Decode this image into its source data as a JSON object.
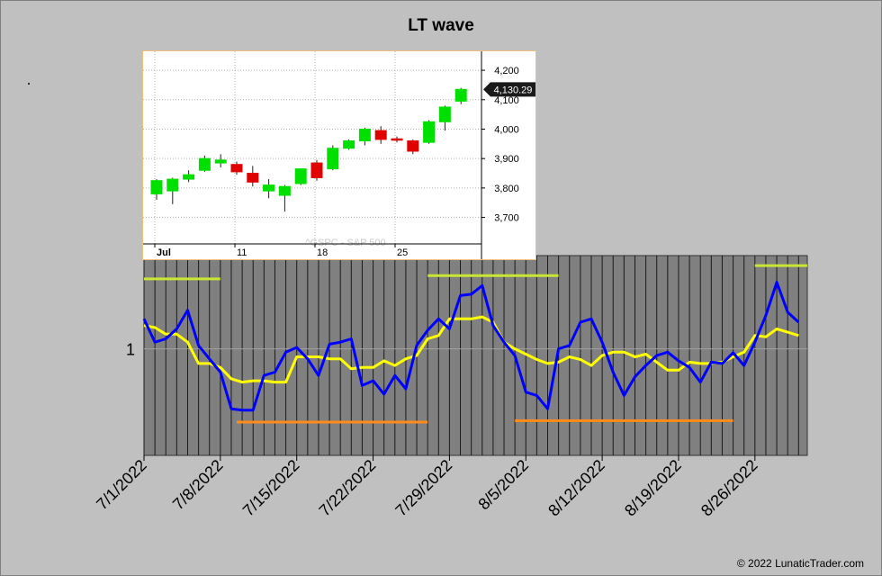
{
  "title": "LT wave",
  "copyright": "© 2022 LunaticTrader.com",
  "colors": {
    "background": "#c0c0c0",
    "plot_bg": "#808080",
    "wave_blue": "#0000ff",
    "wave_yellow": "#ffff00",
    "segment_green": "#c8e632",
    "segment_orange": "#ff8c1a",
    "candle_up": "#00e000",
    "candle_down": "#e00000"
  },
  "chart_data": [
    {
      "type": "line",
      "title": "LT wave",
      "xlabel": "",
      "ylabel": "",
      "y_tick_labels": [
        "1"
      ],
      "x_tick_labels": [
        "7/1/2022",
        "7/8/2022",
        "7/15/2022",
        "7/22/2022",
        "7/29/2022",
        "8/5/2022",
        "8/12/2022",
        "8/19/2022",
        "8/26/2022"
      ],
      "x_tick_day_index": [
        0,
        7,
        14,
        21,
        28,
        35,
        42,
        49,
        56
      ],
      "ylim": [
        -1.6,
        1.4
      ],
      "grid": true,
      "series": [
        {
          "color": "#0000ff",
          "points": [
            [
              0,
              0.45
            ],
            [
              1,
              0.1
            ],
            [
              2,
              0.15
            ],
            [
              3,
              0.3
            ],
            [
              4,
              0.58
            ],
            [
              5,
              0.05
            ],
            [
              6,
              -0.15
            ],
            [
              7,
              -0.35
            ],
            [
              8,
              -0.9
            ],
            [
              9,
              -0.92
            ],
            [
              10,
              -0.92
            ],
            [
              11,
              -0.4
            ],
            [
              12,
              -0.35
            ],
            [
              13,
              -0.05
            ],
            [
              14,
              0.02
            ],
            [
              15,
              -0.15
            ],
            [
              16,
              -0.4
            ],
            [
              17,
              0.07
            ],
            [
              18,
              0.1
            ],
            [
              19,
              0.15
            ],
            [
              20,
              -0.55
            ],
            [
              21,
              -0.48
            ],
            [
              22,
              -0.68
            ],
            [
              23,
              -0.4
            ],
            [
              24,
              -0.6
            ],
            [
              25,
              0.05
            ],
            [
              26,
              0.28
            ],
            [
              27,
              0.45
            ],
            [
              28,
              0.3
            ],
            [
              29,
              0.8
            ],
            [
              30,
              0.82
            ],
            [
              31,
              0.95
            ],
            [
              32,
              0.35
            ],
            [
              33,
              0.1
            ],
            [
              34,
              -0.1
            ],
            [
              35,
              -0.65
            ],
            [
              36,
              -0.7
            ],
            [
              37,
              -0.9
            ],
            [
              38,
              0.0
            ],
            [
              39,
              0.05
            ],
            [
              40,
              0.4
            ],
            [
              41,
              0.45
            ],
            [
              42,
              0.1
            ],
            [
              43,
              -0.35
            ],
            [
              44,
              -0.7
            ],
            [
              45,
              -0.42
            ],
            [
              46,
              -0.25
            ],
            [
              47,
              -0.1
            ],
            [
              48,
              -0.05
            ],
            [
              49,
              -0.18
            ],
            [
              50,
              -0.28
            ],
            [
              51,
              -0.5
            ],
            [
              52,
              -0.2
            ],
            [
              53,
              -0.22
            ],
            [
              54,
              -0.06
            ],
            [
              55,
              -0.25
            ],
            [
              56,
              0.1
            ],
            [
              57,
              0.5
            ],
            [
              58,
              1.0
            ],
            [
              59,
              0.55
            ],
            [
              60,
              0.4
            ]
          ]
        },
        {
          "color": "#ffff00",
          "points": [
            [
              0,
              0.35
            ],
            [
              1,
              0.32
            ],
            [
              2,
              0.22
            ],
            [
              3,
              0.22
            ],
            [
              4,
              0.1
            ],
            [
              5,
              -0.22
            ],
            [
              6,
              -0.22
            ],
            [
              7,
              -0.28
            ],
            [
              8,
              -0.45
            ],
            [
              9,
              -0.5
            ],
            [
              10,
              -0.48
            ],
            [
              11,
              -0.48
            ],
            [
              12,
              -0.5
            ],
            [
              13,
              -0.5
            ],
            [
              14,
              -0.12
            ],
            [
              15,
              -0.12
            ],
            [
              16,
              -0.12
            ],
            [
              17,
              -0.15
            ],
            [
              18,
              -0.15
            ],
            [
              19,
              -0.3
            ],
            [
              20,
              -0.28
            ],
            [
              21,
              -0.28
            ],
            [
              22,
              -0.18
            ],
            [
              23,
              -0.25
            ],
            [
              24,
              -0.15
            ],
            [
              25,
              -0.1
            ],
            [
              26,
              0.15
            ],
            [
              27,
              0.2
            ],
            [
              28,
              0.45
            ],
            [
              29,
              0.45
            ],
            [
              30,
              0.45
            ],
            [
              31,
              0.48
            ],
            [
              32,
              0.4
            ],
            [
              33,
              0.1
            ],
            [
              34,
              0.0
            ],
            [
              35,
              -0.08
            ],
            [
              36,
              -0.16
            ],
            [
              37,
              -0.22
            ],
            [
              38,
              -0.2
            ],
            [
              39,
              -0.12
            ],
            [
              40,
              -0.16
            ],
            [
              41,
              -0.25
            ],
            [
              42,
              -0.1
            ],
            [
              43,
              -0.05
            ],
            [
              44,
              -0.05
            ],
            [
              45,
              -0.12
            ],
            [
              46,
              -0.08
            ],
            [
              47,
              -0.2
            ],
            [
              48,
              -0.32
            ],
            [
              49,
              -0.32
            ],
            [
              50,
              -0.2
            ],
            [
              51,
              -0.22
            ],
            [
              52,
              -0.22
            ],
            [
              53,
              -0.2
            ],
            [
              54,
              -0.12
            ],
            [
              55,
              -0.05
            ],
            [
              56,
              0.2
            ],
            [
              57,
              0.18
            ],
            [
              58,
              0.3
            ],
            [
              59,
              0.25
            ],
            [
              60,
              0.2
            ]
          ]
        }
      ],
      "segments": [
        {
          "color": "#c8e632",
          "x": [
            0,
            7
          ],
          "y": 1.05
        },
        {
          "color": "#c8e632",
          "x": [
            26,
            38
          ],
          "y": 1.1
        },
        {
          "color": "#c8e632",
          "x": [
            56,
            60.8
          ],
          "y": 1.25
        },
        {
          "color": "#ff8c1a",
          "x": [
            8.5,
            26
          ],
          "y": -1.1
        },
        {
          "color": "#ff8c1a",
          "x": [
            34,
            54
          ],
          "y": -1.08
        }
      ]
    },
    {
      "type": "candlestick",
      "source_label": "^GSPC - S&P 500",
      "last_price_label": "4,130.29",
      "y_tick_labels": [
        "4,200",
        "4,100",
        "4,000",
        "3,900",
        "3,800",
        "3,700"
      ],
      "y_ticks": [
        4200,
        4100,
        4000,
        3900,
        3800,
        3700
      ],
      "ylim": [
        3610,
        4240
      ],
      "x_tick_labels": [
        "Jul",
        "11",
        "18",
        "25"
      ],
      "x_tick_index": [
        0,
        5,
        10,
        15
      ],
      "candles": [
        {
          "o": 3780,
          "h": 3830,
          "l": 3760,
          "c": 3825
        },
        {
          "o": 3790,
          "h": 3835,
          "l": 3745,
          "c": 3830
        },
        {
          "o": 3830,
          "h": 3860,
          "l": 3820,
          "c": 3845
        },
        {
          "o": 3860,
          "h": 3910,
          "l": 3855,
          "c": 3900
        },
        {
          "o": 3885,
          "h": 3915,
          "l": 3870,
          "c": 3895
        },
        {
          "o": 3880,
          "h": 3890,
          "l": 3845,
          "c": 3855
        },
        {
          "o": 3850,
          "h": 3875,
          "l": 3805,
          "c": 3820
        },
        {
          "o": 3790,
          "h": 3830,
          "l": 3765,
          "c": 3810
        },
        {
          "o": 3775,
          "h": 3810,
          "l": 3720,
          "c": 3805
        },
        {
          "o": 3815,
          "h": 3860,
          "l": 3810,
          "c": 3865
        },
        {
          "o": 3885,
          "h": 3895,
          "l": 3825,
          "c": 3835
        },
        {
          "o": 3865,
          "h": 3945,
          "l": 3860,
          "c": 3935
        },
        {
          "o": 3935,
          "h": 3965,
          "l": 3930,
          "c": 3960
        },
        {
          "o": 3960,
          "h": 4005,
          "l": 3945,
          "c": 4000
        },
        {
          "o": 3995,
          "h": 4010,
          "l": 3950,
          "c": 3965
        },
        {
          "o": 3967,
          "h": 3975,
          "l": 3955,
          "c": 3966
        },
        {
          "o": 3960,
          "h": 3965,
          "l": 3915,
          "c": 3925
        },
        {
          "o": 3955,
          "h": 4030,
          "l": 3950,
          "c": 4025
        },
        {
          "o": 4025,
          "h": 4080,
          "l": 3995,
          "c": 4075
        },
        {
          "o": 4095,
          "h": 4140,
          "l": 4085,
          "c": 4135
        }
      ]
    }
  ]
}
